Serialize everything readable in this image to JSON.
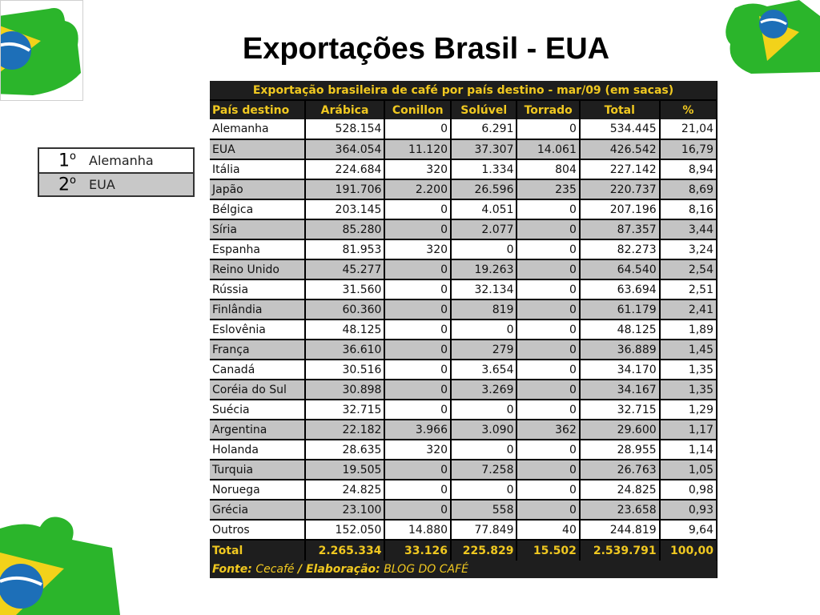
{
  "slide_title": "Exportações Brasil - EUA",
  "ranking": [
    {
      "position": "1",
      "ordinal": "o",
      "country": "Alemanha"
    },
    {
      "position": "2",
      "ordinal": "o",
      "country": "EUA"
    }
  ],
  "table": {
    "caption": "Exportação brasileira de café por país destino - mar/09 (em sacas)",
    "headers": [
      "País destino",
      "Arábica",
      "Conillon",
      "Solúvel",
      "Torrado",
      "Total",
      "%"
    ],
    "rows": [
      [
        "Alemanha",
        "528.154",
        "0",
        "6.291",
        "0",
        "534.445",
        "21,04"
      ],
      [
        "EUA",
        "364.054",
        "11.120",
        "37.307",
        "14.061",
        "426.542",
        "16,79"
      ],
      [
        "Itália",
        "224.684",
        "320",
        "1.334",
        "804",
        "227.142",
        "8,94"
      ],
      [
        "Japão",
        "191.706",
        "2.200",
        "26.596",
        "235",
        "220.737",
        "8,69"
      ],
      [
        "Bélgica",
        "203.145",
        "0",
        "4.051",
        "0",
        "207.196",
        "8,16"
      ],
      [
        "Síria",
        "85.280",
        "0",
        "2.077",
        "0",
        "87.357",
        "3,44"
      ],
      [
        "Espanha",
        "81.953",
        "320",
        "0",
        "0",
        "82.273",
        "3,24"
      ],
      [
        "Reino Unido",
        "45.277",
        "0",
        "19.263",
        "0",
        "64.540",
        "2,54"
      ],
      [
        "Rússia",
        "31.560",
        "0",
        "32.134",
        "0",
        "63.694",
        "2,51"
      ],
      [
        "Finlândia",
        "60.360",
        "0",
        "819",
        "0",
        "61.179",
        "2,41"
      ],
      [
        "Eslovênia",
        "48.125",
        "0",
        "0",
        "0",
        "48.125",
        "1,89"
      ],
      [
        "França",
        "36.610",
        "0",
        "279",
        "0",
        "36.889",
        "1,45"
      ],
      [
        "Canadá",
        "30.516",
        "0",
        "3.654",
        "0",
        "34.170",
        "1,35"
      ],
      [
        "Coréia do Sul",
        "30.898",
        "0",
        "3.269",
        "0",
        "34.167",
        "1,35"
      ],
      [
        "Suécia",
        "32.715",
        "0",
        "0",
        "0",
        "32.715",
        "1,29"
      ],
      [
        "Argentina",
        "22.182",
        "3.966",
        "3.090",
        "362",
        "29.600",
        "1,17"
      ],
      [
        "Holanda",
        "28.635",
        "320",
        "0",
        "0",
        "28.955",
        "1,14"
      ],
      [
        "Turquia",
        "19.505",
        "0",
        "7.258",
        "0",
        "26.763",
        "1,05"
      ],
      [
        "Noruega",
        "24.825",
        "0",
        "0",
        "0",
        "24.825",
        "0,98"
      ],
      [
        "Grécia",
        "23.100",
        "0",
        "558",
        "0",
        "23.658",
        "0,93"
      ],
      [
        "Outros",
        "152.050",
        "14.880",
        "77.849",
        "40",
        "244.819",
        "9,64"
      ]
    ],
    "total_row": [
      "Total",
      "2.265.334",
      "33.126",
      "225.829",
      "15.502",
      "2.539.791",
      "100,00"
    ],
    "source_label": "Fonte:",
    "source_value": "Cecafé",
    "credit_label": "/ Elaboração:",
    "credit_value": "BLOG DO CAFÉ"
  },
  "decorations": {
    "puzzle_green": "#2bb52b",
    "puzzle_yellow": "#f2d21a",
    "puzzle_blue": "#1d6fb8"
  }
}
